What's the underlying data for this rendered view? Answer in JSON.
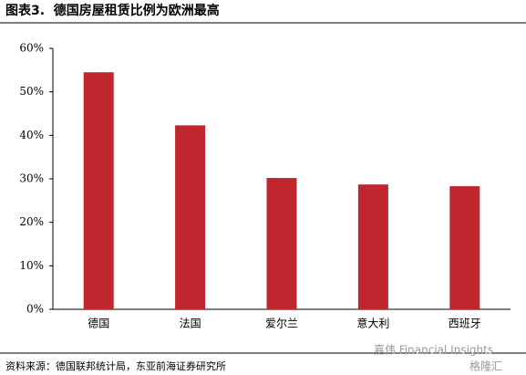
{
  "chart_data": {
    "type": "bar",
    "title": "图表3.  德国房屋租赁比例为欧洲最高",
    "categories": [
      "德国",
      "法国",
      "爱尔兰",
      "意大利",
      "西班牙"
    ],
    "values": [
      54.5,
      42.3,
      30.2,
      28.7,
      28.3
    ],
    "color": "#c0262d",
    "ylim": [
      0,
      60
    ],
    "yticks": [
      {
        "value": 0,
        "label": "0%"
      },
      {
        "value": 10,
        "label": "10%"
      },
      {
        "value": 20,
        "label": "20%"
      },
      {
        "value": 30,
        "label": "30%"
      },
      {
        "value": 40,
        "label": "40%"
      },
      {
        "value": 50,
        "label": "50%"
      },
      {
        "value": 60,
        "label": "60%"
      }
    ],
    "source": "资料来源：德国联邦统计局，东亚前海证券研究所",
    "watermark": [
      "嘉伟 Financial Insights",
      "格隆汇"
    ]
  }
}
